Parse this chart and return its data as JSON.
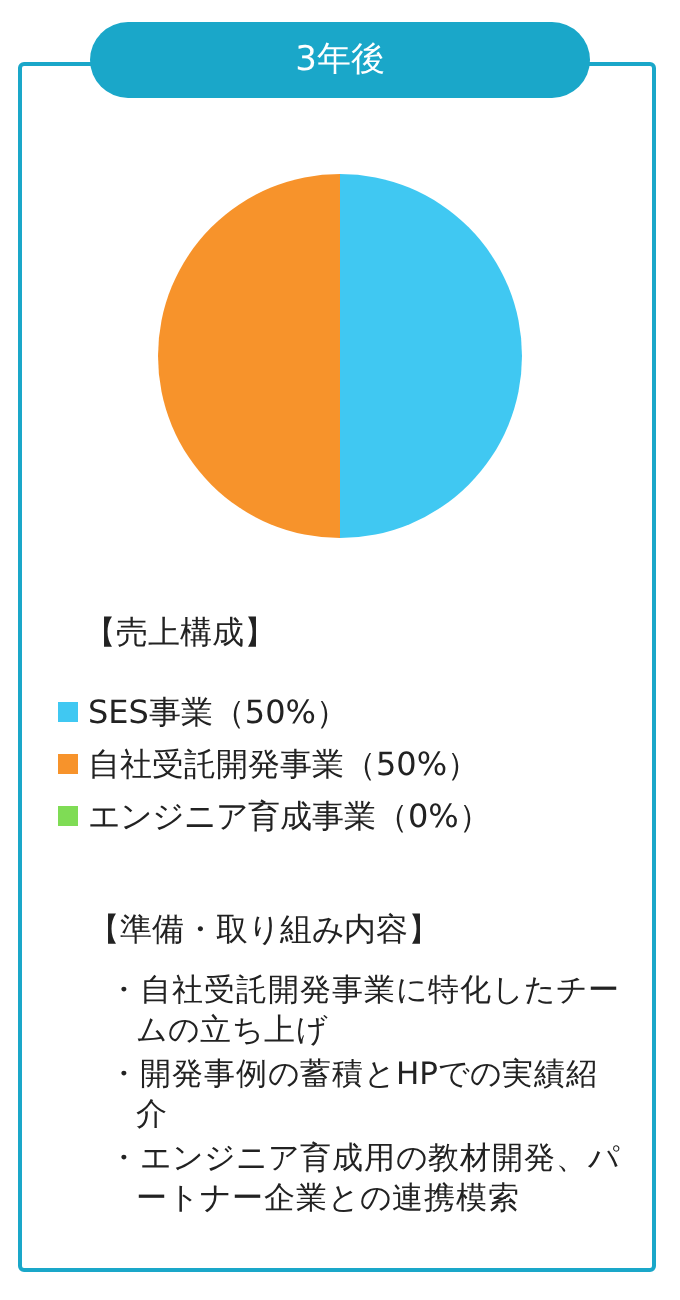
{
  "chart_data": {
    "type": "pie",
    "title": "3年後",
    "legend_title": "【売上構成】",
    "categories": [
      "SES事業（50%）",
      "自社受託開発事業（50%）",
      "エンジニア育成事業（0%）"
    ],
    "values": [
      50,
      50,
      0
    ],
    "colors": [
      "#40c8f2",
      "#f7932b",
      "#7fdc55"
    ],
    "legend": "bottom",
    "annotations": [
      "【準備・取り組み内容】",
      "・自社受託開発事業に特化したチームの立ち上げ",
      "・開発事例の蓄積とHPでの実績紹介",
      "・エンジニア育成用の教材開発、パートナー企業との連携模索"
    ]
  }
}
